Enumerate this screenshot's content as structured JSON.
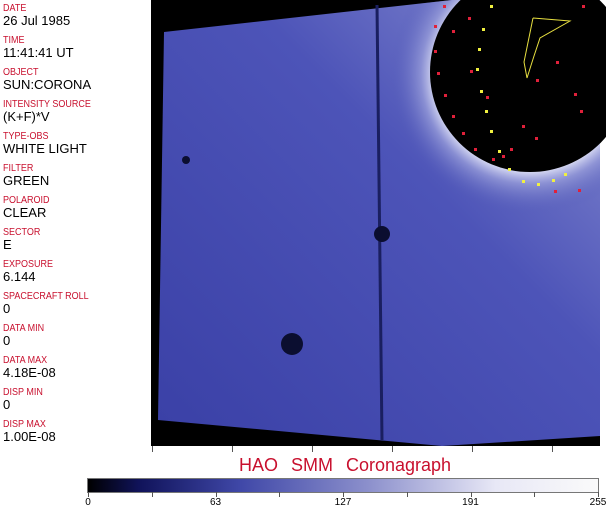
{
  "fields": [
    {
      "label": "DATE",
      "value": "26 Jul 1985"
    },
    {
      "label": "TIME",
      "value": "11:41:41 UT"
    },
    {
      "label": "OBJECT",
      "value": "SUN:CORONA"
    },
    {
      "label": "INTENSITY SOURCE",
      "value": "(K+F)*V"
    },
    {
      "label": "TYPE-OBS",
      "value": "WHITE LIGHT"
    },
    {
      "label": "FILTER",
      "value": "GREEN"
    },
    {
      "label": "POLAROID",
      "value": "CLEAR"
    },
    {
      "label": "SECTOR",
      "value": "E"
    },
    {
      "label": "EXPOSURE",
      "value": "6.144"
    },
    {
      "label": "SPACECRAFT ROLL",
      "value": "0"
    },
    {
      "label": "DATA MIN",
      "value": "0"
    },
    {
      "label": "DATA MAX",
      "value": "4.18E-08"
    },
    {
      "label": "DISP MIN",
      "value": "0"
    },
    {
      "label": "DISP MAX",
      "value": "1.00E-08"
    }
  ],
  "title": "HAO SMM Coronagraph",
  "colorbar": {
    "labels": [
      "0",
      "63",
      "127",
      "191",
      "255"
    ],
    "colors": [
      "#000000",
      "#10135a",
      "#4048a8",
      "#8c90cc",
      "#fafafa"
    ]
  },
  "accent": "#c8102e"
}
